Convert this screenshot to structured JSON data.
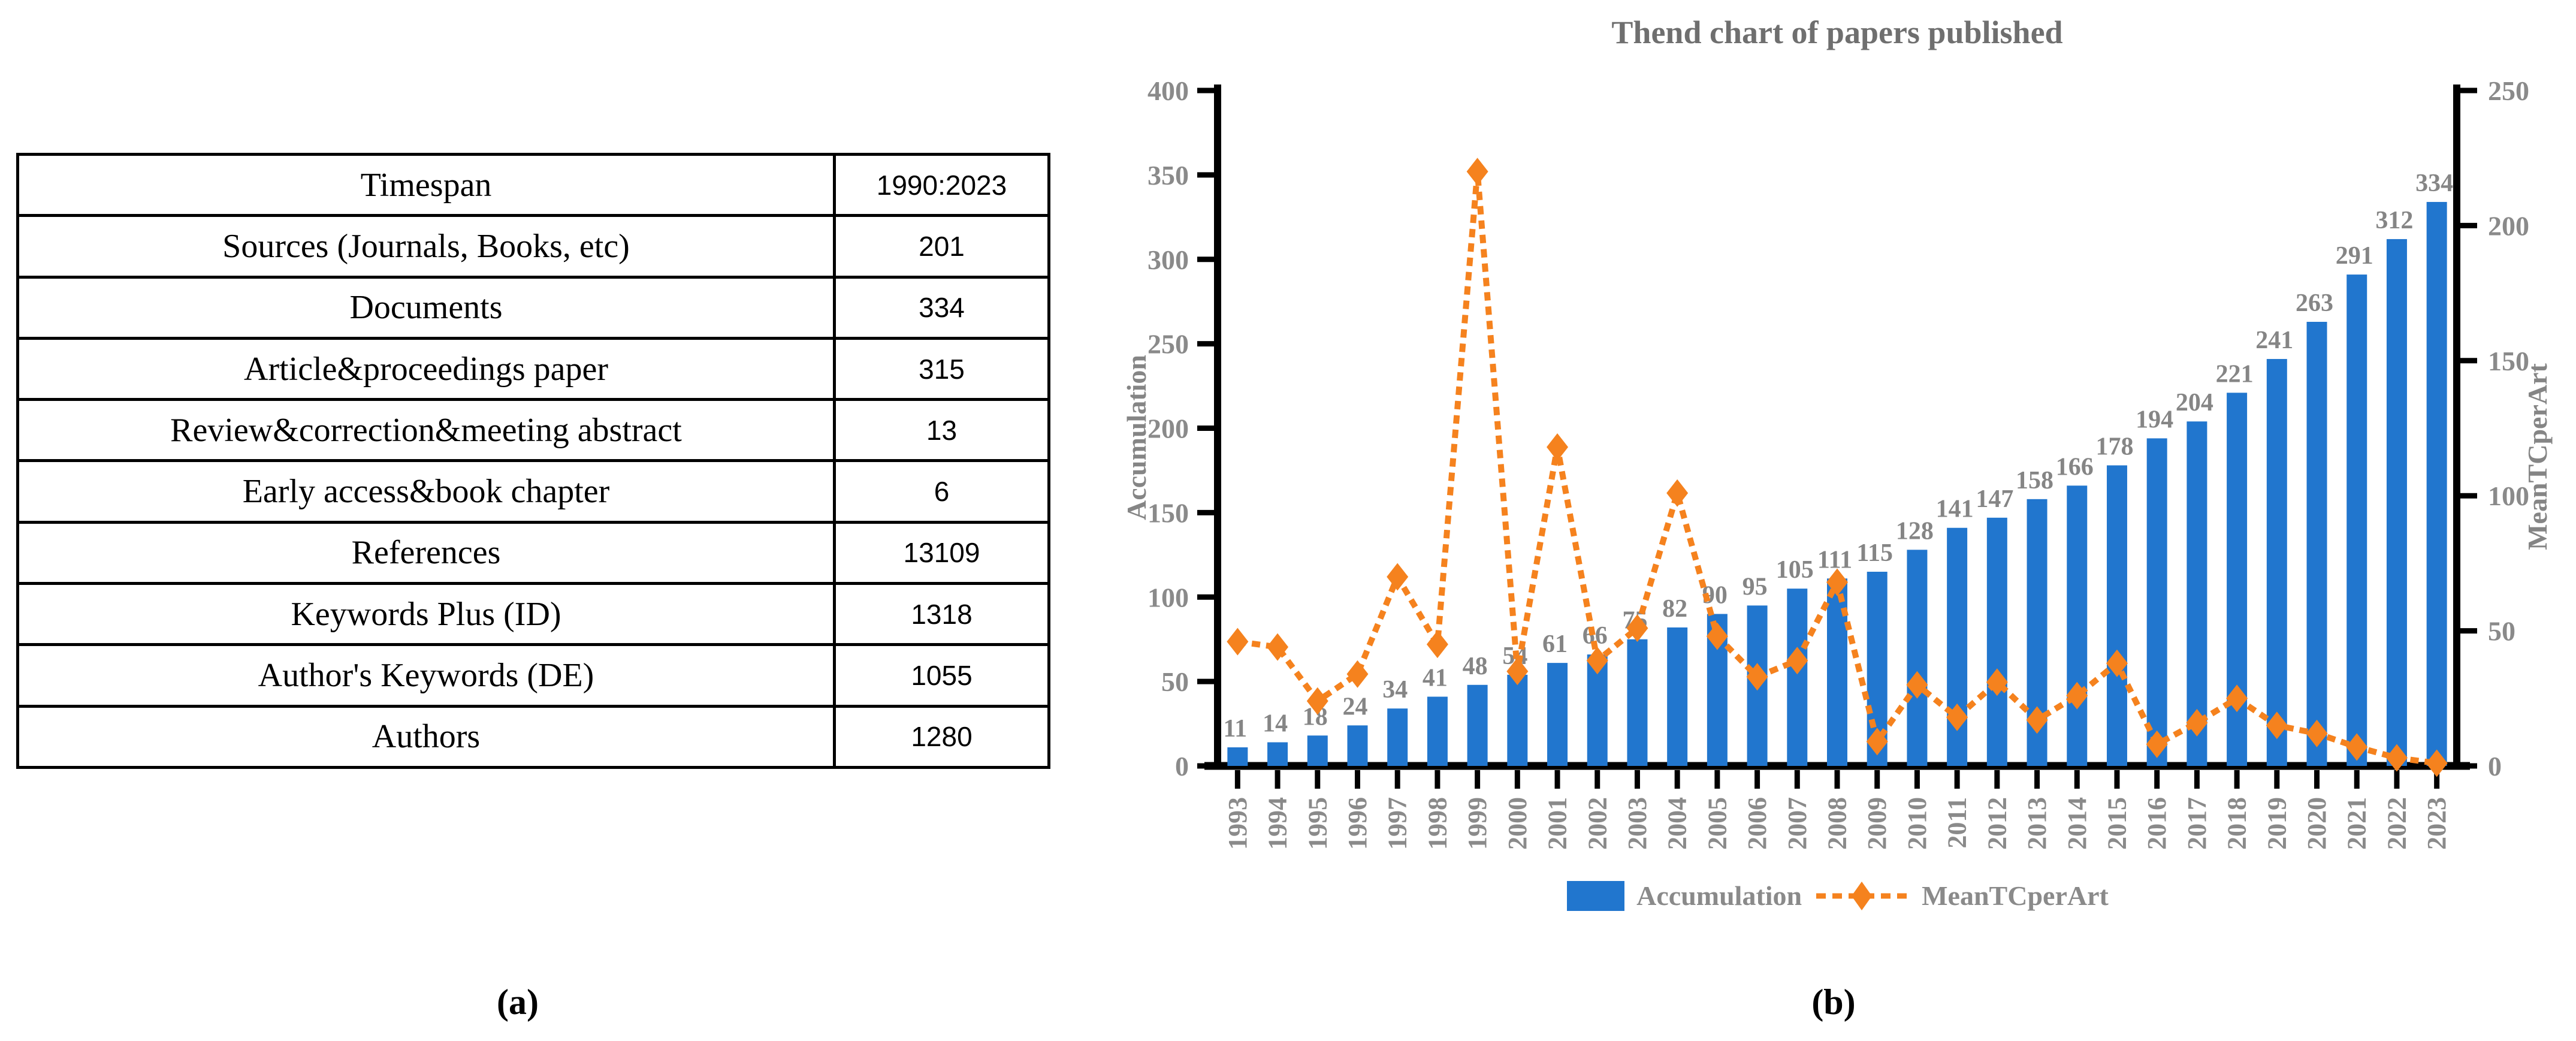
{
  "figure": {
    "panel_a_label": "(a)",
    "panel_b_label": "(b)"
  },
  "table": {
    "rows": [
      {
        "label": "Timespan",
        "value": "1990:2023"
      },
      {
        "label": "Sources (Journals, Books, etc)",
        "value": "201"
      },
      {
        "label": "Documents",
        "value": "334"
      },
      {
        "label": "Article&proceedings paper",
        "value": "315"
      },
      {
        "label": "Review&correction&meeting abstract",
        "value": "13"
      },
      {
        "label": "Early access&book chapter",
        "value": "6"
      },
      {
        "label": "References",
        "value": "13109"
      },
      {
        "label": "Keywords Plus (ID)",
        "value": "1318"
      },
      {
        "label": "Author's Keywords (DE)",
        "value": "1055"
      },
      {
        "label": "Authors",
        "value": "1280"
      }
    ]
  },
  "chart_data": {
    "type": "bar",
    "title": "Thend chart of papers published",
    "categories": [
      1993,
      1994,
      1995,
      1996,
      1997,
      1998,
      1999,
      2000,
      2001,
      2002,
      2003,
      2004,
      2005,
      2006,
      2007,
      2008,
      2009,
      2010,
      2011,
      2012,
      2013,
      2014,
      2015,
      2016,
      2017,
      2018,
      2019,
      2020,
      2021,
      2022,
      2023
    ],
    "series": [
      {
        "name": "Accumulation",
        "type": "bar",
        "axis": "left",
        "values": [
          11,
          14,
          18,
          24,
          34,
          41,
          48,
          54,
          61,
          66,
          75,
          82,
          90,
          95,
          105,
          111,
          115,
          128,
          141,
          147,
          158,
          166,
          178,
          194,
          204,
          221,
          241,
          263,
          291,
          312,
          334
        ]
      },
      {
        "name": "MeanTCperArt",
        "type": "line",
        "axis": "right",
        "style": "dashed",
        "marker": "diamond",
        "values": [
          46,
          44,
          24,
          34,
          70,
          45,
          220,
          35,
          118,
          39,
          51,
          101,
          48,
          33,
          39,
          68,
          9,
          30,
          18,
          31,
          17,
          26,
          38,
          8,
          16,
          25,
          15,
          12,
          7,
          3,
          1
        ]
      }
    ],
    "left_axis": {
      "label": "Accumulation",
      "min": 0,
      "max": 400,
      "step": 50
    },
    "right_axis": {
      "label": "MeanTCperArt",
      "min": 0,
      "max": 250,
      "step": 50
    },
    "legend_position": "bottom",
    "grid": false,
    "colors": {
      "bar": "#2176CE",
      "line": "#F5821E",
      "text_gray": "#8a8a8a",
      "title_gray": "#6f6f6f",
      "axis_black": "#000000"
    }
  }
}
